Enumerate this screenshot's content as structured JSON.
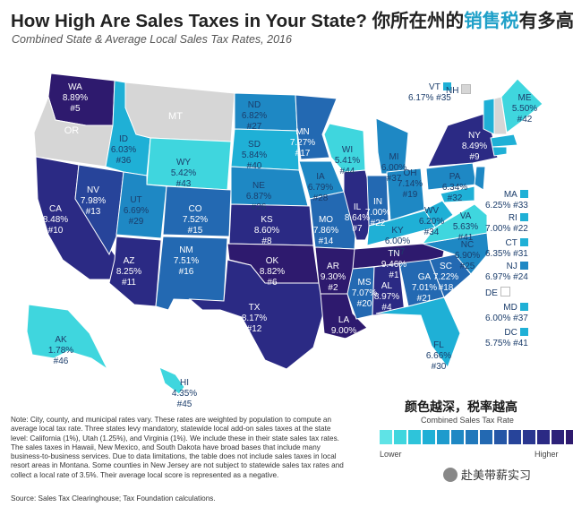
{
  "title_en": "How High Are Sales Taxes in Your State?",
  "title_cn_1": "你所在州的",
  "title_cn_hl": "销售税",
  "title_cn_2": "有多高？",
  "subtitle": "Combined State & Average Local Sales Tax Rates, 2016",
  "colors": {
    "no_tax": "#d6d6d6",
    "lightest": "#3fd6de",
    "light": "#1fb0d6",
    "mid_light": "#1e88c4",
    "mid": "#2369b2",
    "mid_dark": "#27449a",
    "dark": "#2b2a84",
    "darkest": "#2e1a6e"
  },
  "states": [
    {
      "abbr": "WA",
      "rate": "8.89%",
      "rank": "#5"
    },
    {
      "abbr": "OR",
      "rate": "",
      "rank": ""
    },
    {
      "abbr": "CA",
      "rate": "8.48%",
      "rank": "#10"
    },
    {
      "abbr": "NV",
      "rate": "7.98%",
      "rank": "#13"
    },
    {
      "abbr": "ID",
      "rate": "6.03%",
      "rank": "#36"
    },
    {
      "abbr": "MT",
      "rate": "",
      "rank": ""
    },
    {
      "abbr": "WY",
      "rate": "5.42%",
      "rank": "#43"
    },
    {
      "abbr": "UT",
      "rate": "6.69%",
      "rank": "#29"
    },
    {
      "abbr": "AZ",
      "rate": "8.25%",
      "rank": "#11"
    },
    {
      "abbr": "CO",
      "rate": "7.52%",
      "rank": "#15"
    },
    {
      "abbr": "NM",
      "rate": "7.51%",
      "rank": "#16"
    },
    {
      "abbr": "ND",
      "rate": "6.82%",
      "rank": "#27"
    },
    {
      "abbr": "SD",
      "rate": "5.84%",
      "rank": "#40"
    },
    {
      "abbr": "NE",
      "rate": "6.87%",
      "rank": "#26"
    },
    {
      "abbr": "KS",
      "rate": "8.60%",
      "rank": "#8"
    },
    {
      "abbr": "OK",
      "rate": "8.82%",
      "rank": "#6"
    },
    {
      "abbr": "TX",
      "rate": "8.17%",
      "rank": "#12"
    },
    {
      "abbr": "MN",
      "rate": "7.27%",
      "rank": "#17"
    },
    {
      "abbr": "IA",
      "rate": "6.79%",
      "rank": "#28"
    },
    {
      "abbr": "MO",
      "rate": "7.86%",
      "rank": "#14"
    },
    {
      "abbr": "AR",
      "rate": "9.30%",
      "rank": "#2"
    },
    {
      "abbr": "LA",
      "rate": "9.00%",
      "rank": "#3"
    },
    {
      "abbr": "WI",
      "rate": "5.41%",
      "rank": "#44"
    },
    {
      "abbr": "IL",
      "rate": "8.64%",
      "rank": "#7"
    },
    {
      "abbr": "MI",
      "rate": "6.00%",
      "rank": "#37"
    },
    {
      "abbr": "IN",
      "rate": "7.00%",
      "rank": "#22"
    },
    {
      "abbr": "OH",
      "rate": "7.14%",
      "rank": "#19"
    },
    {
      "abbr": "KY",
      "rate": "6.00%",
      "rank": "#37"
    },
    {
      "abbr": "TN",
      "rate": "9.46%",
      "rank": "#1"
    },
    {
      "abbr": "MS",
      "rate": "7.07%",
      "rank": "#20"
    },
    {
      "abbr": "AL",
      "rate": "8.97%",
      "rank": "#4"
    },
    {
      "abbr": "GA",
      "rate": "7.01%",
      "rank": "#21"
    },
    {
      "abbr": "FL",
      "rate": "6.66%",
      "rank": "#30"
    },
    {
      "abbr": "SC",
      "rate": "7.22%",
      "rank": "#18"
    },
    {
      "abbr": "NC",
      "rate": "6.90%",
      "rank": "#25"
    },
    {
      "abbr": "VA",
      "rate": "5.63%",
      "rank": "#41"
    },
    {
      "abbr": "WV",
      "rate": "6.20%",
      "rank": "#34"
    },
    {
      "abbr": "PA",
      "rate": "6.34%",
      "rank": "#32"
    },
    {
      "abbr": "NY",
      "rate": "8.49%",
      "rank": "#9"
    },
    {
      "abbr": "VT",
      "rate": "6.17%",
      "rank": "#35"
    },
    {
      "abbr": "NH",
      "rate": "",
      "rank": ""
    },
    {
      "abbr": "ME",
      "rate": "5.50%",
      "rank": "#42"
    },
    {
      "abbr": "MA",
      "rate": "6.25%",
      "rank": "#33"
    },
    {
      "abbr": "RI",
      "rate": "7.00%",
      "rank": "#22"
    },
    {
      "abbr": "CT",
      "rate": "6.35%",
      "rank": "#31"
    },
    {
      "abbr": "NJ",
      "rate": "6.97%",
      "rank": "#24"
    },
    {
      "abbr": "DE",
      "rate": "",
      "rank": ""
    },
    {
      "abbr": "MD",
      "rate": "6.00%",
      "rank": "#37"
    },
    {
      "abbr": "DC",
      "rate": "5.75%",
      "rank": "#41"
    },
    {
      "abbr": "AK",
      "rate": "1.78%",
      "rank": "#46"
    },
    {
      "abbr": "HI",
      "rate": "4.35%",
      "rank": "#45"
    }
  ],
  "legend": {
    "cn_title": "颜色越深，税率越高",
    "title": "Combined Sales Tax Rate",
    "lower": "Lower",
    "higher": "Higher",
    "swatches": [
      "#5fe3e6",
      "#3fd6de",
      "#2ec4da",
      "#1fb0d6",
      "#1e9bcd",
      "#1e88c4",
      "#2178bb",
      "#2369b2",
      "#2556a6",
      "#27449a",
      "#2a3790",
      "#2b2a84",
      "#2d2279",
      "#2e1a6e"
    ]
  },
  "note": "Note: City, county, and municipal rates vary. These rates are weighted by population to compute an average local tax rate. Three states levy mandatory, statewide local add-on sales taxes at the state level: California (1%), Utah (1.25%), and Virginia (1%). We include these in their state sales tax rates. The sales taxes in Hawaii, New Mexico, and South Dakota have broad bases that include many business-to-business services. Due to data limitations, the table does not include sales taxes in local resort areas in Montana. Some counties in New Jersey are not subject to statewide sales tax rates and collect a local rate of 3.5%. Their average local score is represented as a negative.",
  "source": "Source: Sales Tax Clearinghouse; Tax Foundation calculations.",
  "watermark": "赴美带薪实习"
}
